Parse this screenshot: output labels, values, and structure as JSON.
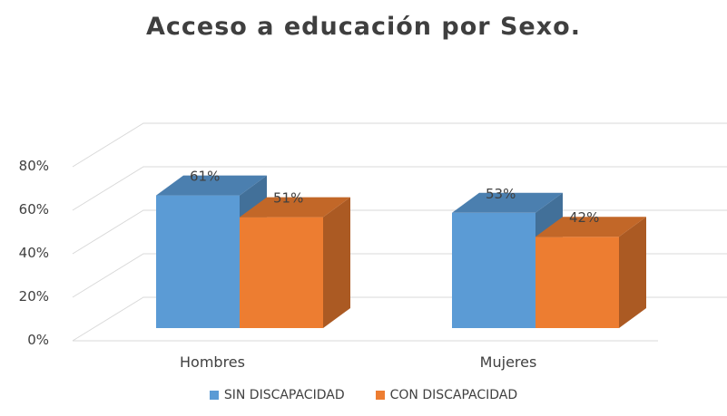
{
  "chart_data": {
    "type": "bar",
    "title": "Acceso a educación por Sexo.",
    "categories": [
      "Hombres",
      "Mujeres"
    ],
    "series": [
      {
        "name": "SIN DISCAPACIDAD",
        "values": [
          61,
          53
        ],
        "labels": [
          "61%",
          "53%"
        ],
        "color": "#5b9bd5"
      },
      {
        "name": "CON DISCAPACIDAD",
        "values": [
          51,
          42
        ],
        "labels": [
          "51%",
          "42%"
        ],
        "color": "#ed7d31"
      }
    ],
    "ylim": [
      0,
      80
    ],
    "yticks": [
      "0%",
      "20%",
      "40%",
      "60%",
      "80%"
    ],
    "grid": true,
    "legend_position": "bottom",
    "style": "3d-column"
  }
}
